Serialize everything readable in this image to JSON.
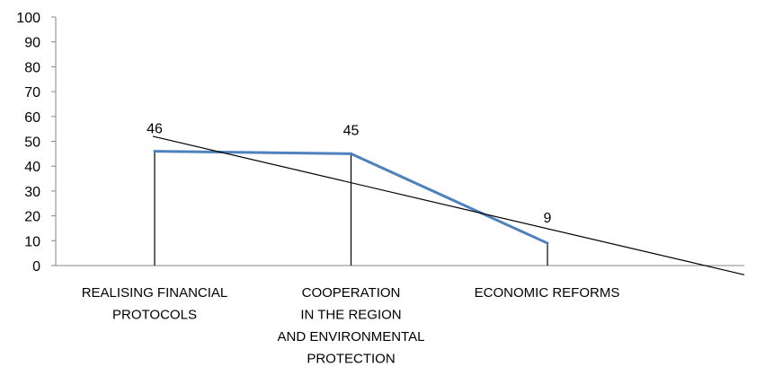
{
  "chart_data": {
    "type": "line",
    "categories": [
      [
        "REALISING FINANCIAL",
        "PROTOCOLS"
      ],
      [
        "COOPERATION",
        "IN THE REGION",
        "AND ENVIRONMENTAL",
        "PROTECTION"
      ],
      [
        "ECONOMIC REFORMS"
      ]
    ],
    "values": [
      46,
      45,
      9
    ],
    "data_labels": [
      "46",
      "45",
      "9"
    ],
    "trendline": {
      "type": "linear"
    },
    "drop_lines": true,
    "ylim": [
      0,
      100
    ],
    "yticks": [
      0,
      10,
      20,
      30,
      40,
      50,
      60,
      70,
      80,
      90,
      100
    ],
    "title": "",
    "xlabel": "",
    "ylabel": "",
    "grid": false,
    "legend": "none",
    "colors": {
      "series": "#4f81bd",
      "trendline": "#000000",
      "axis": "#868686",
      "droplines": "#000000"
    }
  }
}
